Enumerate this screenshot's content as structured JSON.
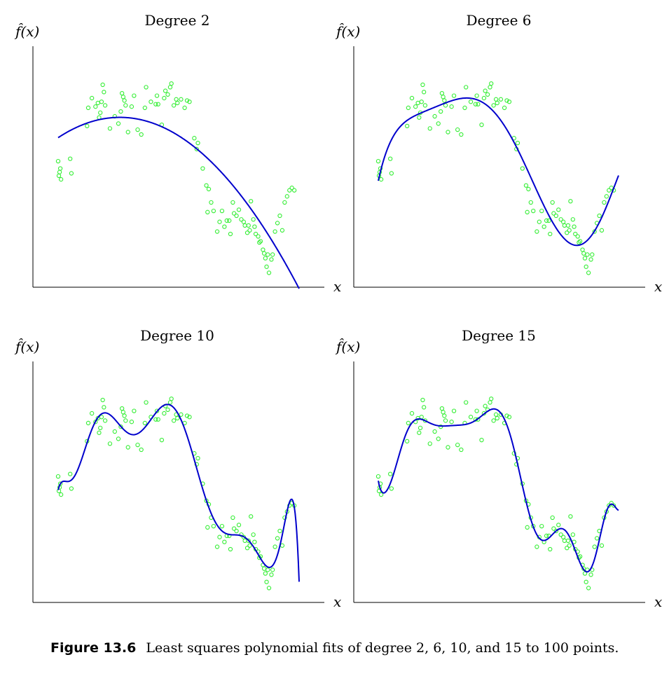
{
  "chart_data": [
    {
      "type": "scatter",
      "title": "Degree 2",
      "ylabel": "f̂(x)",
      "xlabel": "x",
      "degree": 2,
      "xlim": [
        0,
        1
      ],
      "ylim": [
        -0.65,
        1.25
      ],
      "grid": false,
      "points_color": "#33ee33",
      "curve_color": "#0000cc"
    },
    {
      "type": "scatter",
      "title": "Degree 6",
      "ylabel": "f̂(x)",
      "xlabel": "x",
      "degree": 6,
      "xlim": [
        0,
        1
      ],
      "ylim": [
        -0.65,
        1.25
      ],
      "grid": false,
      "points_color": "#33ee33",
      "curve_color": "#0000cc"
    },
    {
      "type": "scatter",
      "title": "Degree 10",
      "ylabel": "f̂(x)",
      "xlabel": "x",
      "degree": 10,
      "xlim": [
        0,
        1
      ],
      "ylim": [
        -0.65,
        1.25
      ],
      "grid": false,
      "points_color": "#33ee33",
      "curve_color": "#0000cc"
    },
    {
      "type": "scatter",
      "title": "Degree 15",
      "ylabel": "f̂(x)",
      "xlabel": "x",
      "degree": 15,
      "xlim": [
        0,
        1
      ],
      "ylim": [
        -0.65,
        1.25
      ],
      "grid": false,
      "points_color": "#33ee33",
      "curve_color": "#0000cc"
    }
  ],
  "points": [
    [
      0.0,
      0.36
    ],
    [
      0.003,
      0.24
    ],
    [
      0.006,
      0.27
    ],
    [
      0.009,
      0.3
    ],
    [
      0.012,
      0.21
    ],
    [
      0.05,
      0.38
    ],
    [
      0.055,
      0.26
    ],
    [
      0.12,
      0.65
    ],
    [
      0.125,
      0.8
    ],
    [
      0.14,
      0.88
    ],
    [
      0.155,
      0.81
    ],
    [
      0.165,
      0.84
    ],
    [
      0.17,
      0.72
    ],
    [
      0.175,
      0.76
    ],
    [
      0.18,
      0.85
    ],
    [
      0.185,
      0.99
    ],
    [
      0.19,
      0.93
    ],
    [
      0.195,
      0.82
    ],
    [
      0.215,
      0.63
    ],
    [
      0.235,
      0.73
    ],
    [
      0.25,
      0.67
    ],
    [
      0.26,
      0.77
    ],
    [
      0.265,
      0.92
    ],
    [
      0.27,
      0.89
    ],
    [
      0.275,
      0.86
    ],
    [
      0.28,
      0.82
    ],
    [
      0.29,
      0.6
    ],
    [
      0.305,
      0.81
    ],
    [
      0.315,
      0.9
    ],
    [
      0.33,
      0.62
    ],
    [
      0.345,
      0.58
    ],
    [
      0.36,
      0.8
    ],
    [
      0.365,
      0.97
    ],
    [
      0.385,
      0.85
    ],
    [
      0.405,
      0.83
    ],
    [
      0.41,
      0.9
    ],
    [
      0.415,
      0.83
    ],
    [
      0.43,
      0.66
    ],
    [
      0.44,
      0.88
    ],
    [
      0.445,
      0.94
    ],
    [
      0.455,
      0.91
    ],
    [
      0.465,
      0.97
    ],
    [
      0.47,
      1.0
    ],
    [
      0.48,
      0.82
    ],
    [
      0.49,
      0.87
    ],
    [
      0.495,
      0.84
    ],
    [
      0.51,
      0.87
    ],
    [
      0.525,
      0.8
    ],
    [
      0.535,
      0.86
    ],
    [
      0.545,
      0.85
    ],
    [
      0.565,
      0.55
    ],
    [
      0.575,
      0.46
    ],
    [
      0.6,
      0.3
    ],
    [
      0.615,
      0.16
    ],
    [
      0.625,
      0.13
    ],
    [
      0.635,
      0.02
    ],
    [
      0.645,
      -0.05
    ],
    [
      0.62,
      -0.06
    ],
    [
      0.58,
      0.51
    ],
    [
      0.66,
      -0.22
    ],
    [
      0.67,
      -0.14
    ],
    [
      0.68,
      -0.05
    ],
    [
      0.69,
      -0.18
    ],
    [
      0.7,
      -0.13
    ],
    [
      0.71,
      -0.13
    ],
    [
      0.715,
      -0.24
    ],
    [
      0.725,
      0.02
    ],
    [
      0.73,
      -0.07
    ],
    [
      0.74,
      -0.09
    ],
    [
      0.75,
      -0.04
    ],
    [
      0.76,
      -0.12
    ],
    [
      0.77,
      -0.14
    ],
    [
      0.775,
      -0.17
    ],
    [
      0.785,
      -0.23
    ],
    [
      0.79,
      -0.17
    ],
    [
      0.795,
      -0.21
    ],
    [
      0.8,
      0.03
    ],
    [
      0.81,
      -0.12
    ],
    [
      0.815,
      -0.18
    ],
    [
      0.82,
      -0.24
    ],
    [
      0.83,
      -0.26
    ],
    [
      0.835,
      -0.31
    ],
    [
      0.84,
      -0.3
    ],
    [
      0.85,
      -0.37
    ],
    [
      0.855,
      -0.4
    ],
    [
      0.86,
      -0.44
    ],
    [
      0.865,
      -0.51
    ],
    [
      0.87,
      -0.41
    ],
    [
      0.875,
      -0.56
    ],
    [
      0.885,
      -0.45
    ],
    [
      0.89,
      -0.41
    ],
    [
      0.9,
      -0.22
    ],
    [
      0.91,
      -0.15
    ],
    [
      0.92,
      -0.09
    ],
    [
      0.93,
      -0.21
    ],
    [
      0.94,
      0.02
    ],
    [
      0.95,
      0.07
    ],
    [
      0.96,
      0.12
    ],
    [
      0.97,
      0.14
    ],
    [
      0.98,
      0.12
    ]
  ],
  "caption": {
    "label": "Figure 13.6",
    "text": "Least squares polynomial fits of degree 2, 6, 10, and 15 to 100 points."
  }
}
